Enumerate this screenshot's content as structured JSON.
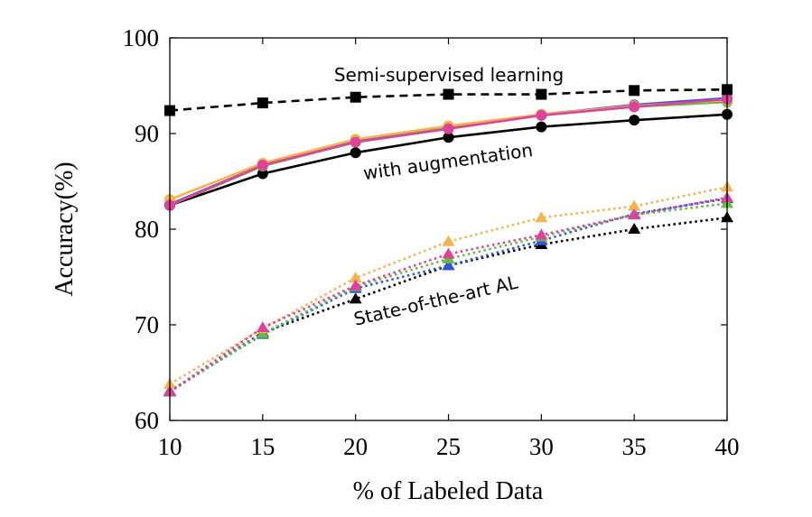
{
  "chart_data": {
    "type": "line",
    "x_label": "% of Labeled Data",
    "y_label": "Accuracy(%)",
    "x": [
      10,
      15,
      20,
      25,
      30,
      35,
      40
    ],
    "xlim": [
      10,
      40
    ],
    "xticks": [
      10,
      15,
      20,
      25,
      30,
      35,
      40
    ],
    "ylim": [
      60,
      100
    ],
    "yticks": [
      60,
      70,
      80,
      90,
      100
    ],
    "annotations": [
      "Semi-supervised learning",
      "with augmentation",
      "State-of-the-art AL"
    ],
    "series": [
      {
        "color": "#000000",
        "line_style": "dotted",
        "marker": "triangle",
        "values": [
          63.0,
          69.2,
          72.7,
          76.2,
          78.4,
          80.0,
          81.2
        ]
      },
      {
        "color": "#3355dd",
        "line_style": "dotted",
        "marker": "triangle",
        "values": [
          63.1,
          69.0,
          73.8,
          76.2,
          78.8,
          81.6,
          83.2
        ]
      },
      {
        "color": "#66bb44",
        "line_style": "dotted",
        "marker": "triangle",
        "values": [
          63.0,
          69.1,
          74.0,
          76.9,
          79.2,
          81.5,
          82.7
        ]
      },
      {
        "color": "#f4b350",
        "line_style": "dotted",
        "marker": "triangle",
        "values": [
          63.8,
          69.6,
          74.9,
          78.7,
          81.2,
          82.4,
          84.4
        ]
      },
      {
        "color": "#dd4499",
        "line_style": "dotted",
        "marker": "triangle",
        "values": [
          63.0,
          69.7,
          74.1,
          77.4,
          79.4,
          81.5,
          83.3
        ]
      },
      {
        "color": "#000000",
        "line_style": "solid",
        "marker": "circle",
        "values": [
          82.5,
          85.8,
          88.0,
          89.6,
          90.7,
          91.4,
          92.0
        ]
      },
      {
        "color": "#3355dd",
        "line_style": "solid",
        "marker": "circle",
        "values": [
          82.6,
          86.7,
          89.2,
          90.6,
          92.0,
          93.0,
          93.7
        ]
      },
      {
        "color": "#66bb44",
        "line_style": "solid",
        "marker": "circle",
        "values": [
          82.5,
          86.6,
          89.1,
          90.6,
          91.9,
          92.8,
          93.3
        ]
      },
      {
        "color": "#f4b350",
        "line_style": "solid",
        "marker": "circle",
        "values": [
          83.1,
          86.9,
          89.4,
          90.8,
          92.0,
          92.9,
          93.5
        ]
      },
      {
        "color": "#dd4499",
        "line_style": "solid",
        "marker": "circle",
        "values": [
          82.5,
          86.7,
          89.1,
          90.5,
          91.9,
          92.8,
          93.6
        ]
      },
      {
        "color": "#000000",
        "line_style": "dashed",
        "marker": "square",
        "values": [
          92.4,
          93.2,
          93.8,
          94.1,
          94.1,
          94.5,
          94.6
        ]
      }
    ]
  }
}
